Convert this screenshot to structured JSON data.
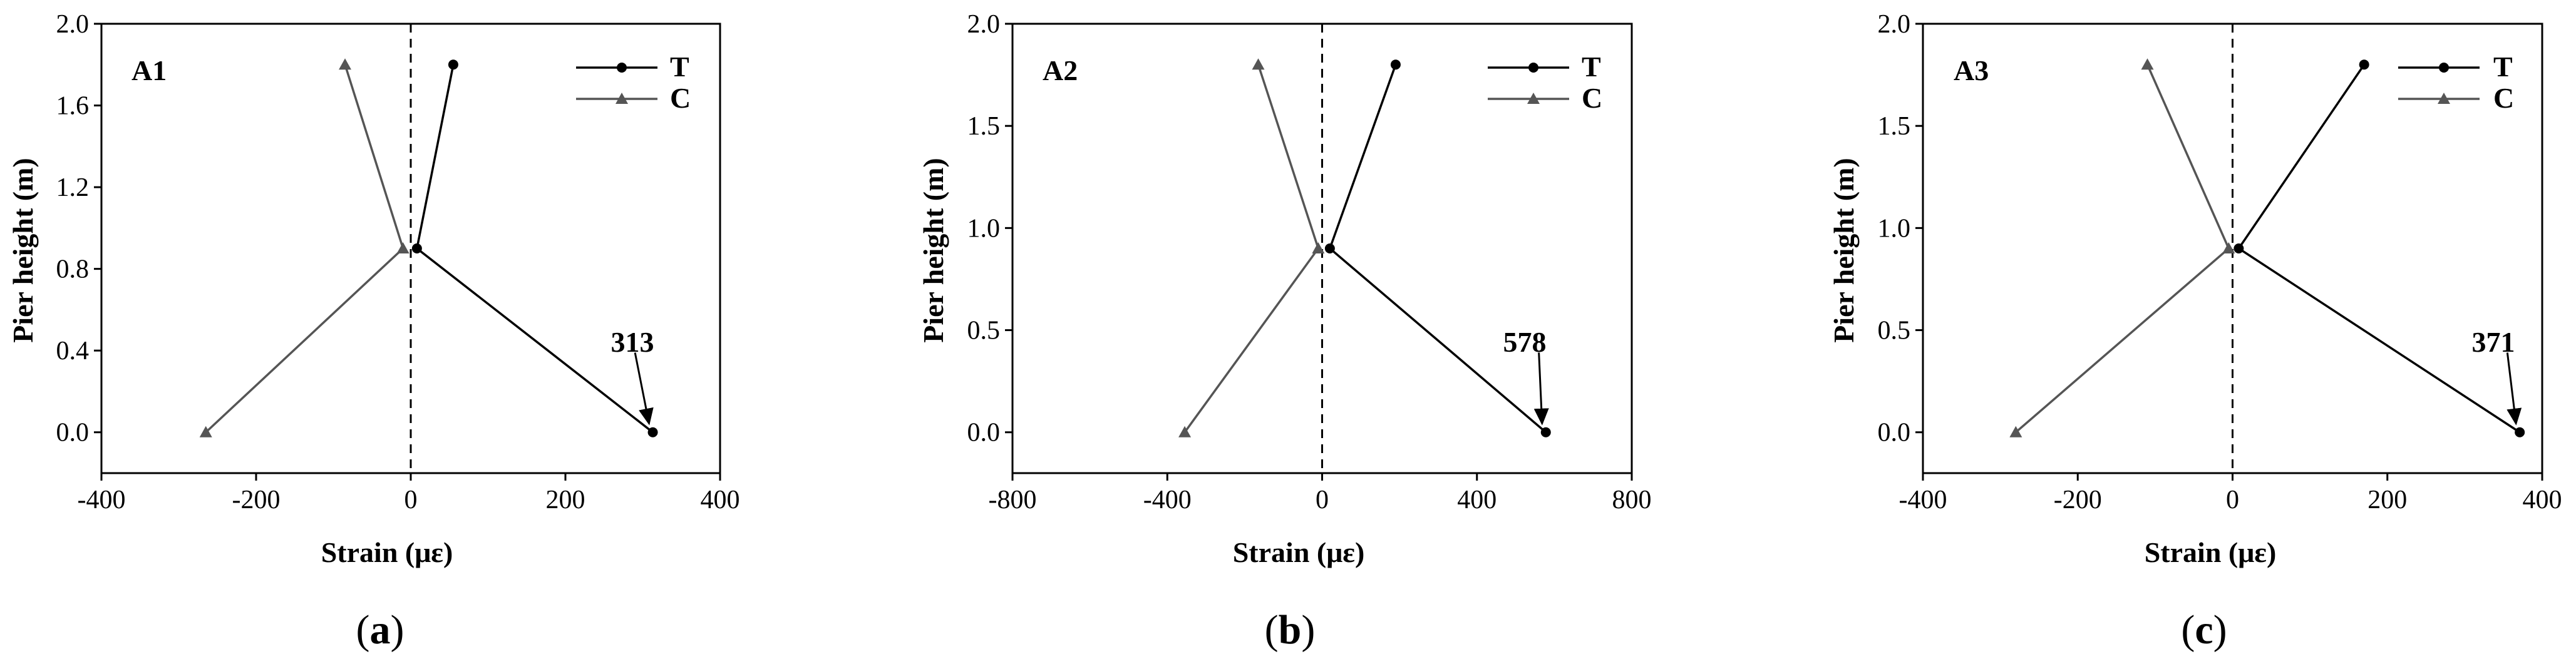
{
  "colors": {
    "tension": "#000000",
    "compression": "#555555",
    "axis": "#000000",
    "zero_line": "#000000"
  },
  "marker_icons": {
    "tension": "circle-marker",
    "compression": "triangle-marker"
  },
  "chart_data": [
    {
      "type": "line",
      "panel_label": "A1",
      "caption": {
        "open": "(",
        "letter": "a",
        "close": ")"
      },
      "xlabel": "Strain (με)",
      "ylabel": "Pier height (m)",
      "xlim": [
        -400,
        400
      ],
      "ylim": [
        -0.2,
        2.0
      ],
      "xticks": [
        -400,
        -200,
        0,
        200,
        400
      ],
      "yticks": [
        0.0,
        0.4,
        0.8,
        1.2,
        1.6,
        2.0
      ],
      "xtick_labels": [
        "-400",
        "-200",
        "0",
        "200",
        "400"
      ],
      "ytick_labels": [
        "0.0",
        "0.4",
        "0.8",
        "1.2",
        "1.6",
        "2.0"
      ],
      "grid": false,
      "legend_position": "top-right",
      "zero_line": "dashed vertical at x = 0",
      "series": [
        {
          "name": "T",
          "marker": "circle",
          "points": [
            [
              313,
              0.0
            ],
            [
              8,
              0.9
            ],
            [
              55,
              1.8
            ]
          ]
        },
        {
          "name": "C",
          "marker": "triangle",
          "points": [
            [
              -265,
              0.0
            ],
            [
              -10,
              0.9
            ],
            [
              -85,
              1.8
            ]
          ]
        }
      ],
      "annotation": {
        "text": "313",
        "target": [
          313,
          0.0
        ],
        "anchor": [
          290,
          0.39
        ]
      }
    },
    {
      "type": "line",
      "panel_label": "A2",
      "caption": {
        "open": "(",
        "letter": "b",
        "close": ")"
      },
      "xlabel": "Strain (με)",
      "ylabel": "Pier height (m)",
      "xlim": [
        -800,
        800
      ],
      "ylim": [
        -0.2,
        2.0
      ],
      "xticks": [
        -800,
        -400,
        0,
        400,
        800
      ],
      "yticks": [
        0.0,
        0.5,
        1.0,
        1.5,
        2.0
      ],
      "xtick_labels": [
        "-800",
        "-400",
        "0",
        "400",
        "800"
      ],
      "ytick_labels": [
        "0.0",
        "0.5",
        "1.0",
        "1.5",
        "2.0"
      ],
      "grid": false,
      "legend_position": "top-right",
      "zero_line": "dashed vertical at x = 0",
      "series": [
        {
          "name": "T",
          "marker": "circle",
          "points": [
            [
              578,
              0.0
            ],
            [
              20,
              0.9
            ],
            [
              190,
              1.8
            ]
          ]
        },
        {
          "name": "C",
          "marker": "triangle",
          "points": [
            [
              -355,
              0.0
            ],
            [
              -10,
              0.9
            ],
            [
              -165,
              1.8
            ]
          ]
        }
      ],
      "annotation": {
        "text": "578",
        "target": [
          578,
          0.0
        ],
        "anchor": [
          560,
          0.39
        ]
      }
    },
    {
      "type": "line",
      "panel_label": "A3",
      "caption": {
        "open": "(",
        "letter": "c",
        "close": ")"
      },
      "xlabel": "Strain (με)",
      "ylabel": "Pier height (m)",
      "xlim": [
        -400,
        400
      ],
      "ylim": [
        -0.2,
        2.0
      ],
      "xticks": [
        -400,
        -200,
        0,
        200,
        400
      ],
      "yticks": [
        0.0,
        0.5,
        1.0,
        1.5,
        2.0
      ],
      "xtick_labels": [
        "-400",
        "-200",
        "0",
        "200",
        "400"
      ],
      "ytick_labels": [
        "0.0",
        "0.5",
        "1.0",
        "1.5",
        "2.0"
      ],
      "grid": false,
      "legend_position": "top-right",
      "zero_line": "dashed vertical at x = 0",
      "series": [
        {
          "name": "T",
          "marker": "circle",
          "points": [
            [
              371,
              0.0
            ],
            [
              8,
              0.9
            ],
            [
              170,
              1.8
            ]
          ]
        },
        {
          "name": "C",
          "marker": "triangle",
          "points": [
            [
              -280,
              0.0
            ],
            [
              -5,
              0.9
            ],
            [
              -110,
              1.8
            ]
          ]
        }
      ],
      "annotation": {
        "text": "371",
        "target": [
          371,
          0.0
        ],
        "anchor": [
          355,
          0.39
        ]
      }
    }
  ]
}
